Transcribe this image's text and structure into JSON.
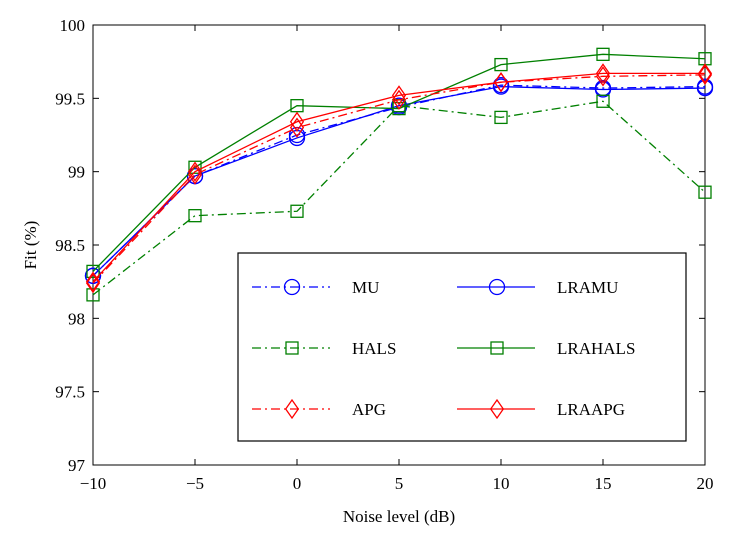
{
  "chart_data": {
    "type": "line",
    "xlabel": "Noise level (dB)",
    "ylabel": "Fit (%)",
    "x": [
      -10,
      -5,
      0,
      5,
      10,
      15,
      20
    ],
    "xlim": [
      -10,
      20
    ],
    "ylim": [
      97,
      100
    ],
    "xticks": [
      "−10",
      "−5",
      "0",
      "5",
      "10",
      "15",
      "20"
    ],
    "yticks": [
      "97",
      "97.5",
      "98",
      "98.5",
      "99",
      "99.5",
      "100"
    ],
    "grid": false,
    "legend_position": "lower-right",
    "series": [
      {
        "name": "MU",
        "color": "#0000ff",
        "line_style": "dash-dot",
        "marker": "circle",
        "values": [
          98.29,
          98.97,
          99.25,
          99.44,
          99.59,
          99.57,
          99.58
        ]
      },
      {
        "name": "LRAMU",
        "color": "#0000ff",
        "line_style": "solid",
        "marker": "circle",
        "values": [
          98.29,
          98.97,
          99.23,
          99.45,
          99.58,
          99.56,
          99.57
        ]
      },
      {
        "name": "HALS",
        "color": "#008000",
        "line_style": "dash-dot",
        "marker": "square",
        "values": [
          98.16,
          98.7,
          98.73,
          99.45,
          99.37,
          99.48,
          98.86
        ]
      },
      {
        "name": "LRAHALS",
        "color": "#008000",
        "line_style": "solid",
        "marker": "square",
        "values": [
          98.32,
          99.03,
          99.45,
          99.43,
          99.73,
          99.8,
          99.77
        ]
      },
      {
        "name": "APG",
        "color": "#ff0000",
        "line_style": "dash-dot",
        "marker": "diamond",
        "values": [
          98.24,
          98.98,
          99.3,
          99.49,
          99.61,
          99.65,
          99.66
        ]
      },
      {
        "name": "LRAAPG",
        "color": "#ff0000",
        "line_style": "solid",
        "marker": "diamond",
        "values": [
          98.25,
          99.0,
          99.34,
          99.52,
          99.61,
          99.67,
          99.67
        ]
      }
    ],
    "legend_order": [
      "MU",
      "LRAMU",
      "HALS",
      "LRAHALS",
      "APG",
      "LRAAPG"
    ]
  }
}
